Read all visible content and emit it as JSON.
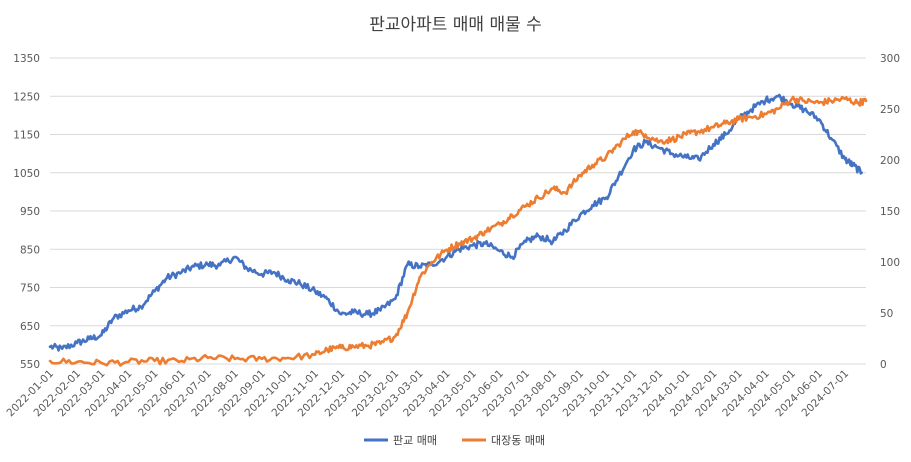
{
  "chart_data": {
    "type": "line",
    "title": "판교아파트 매매 매물 수",
    "xlabel": "",
    "ylabel": "",
    "y_left": {
      "min": 550,
      "max": 1350,
      "ticks": [
        "550",
        "650",
        "750",
        "850",
        "950",
        "1050",
        "1150",
        "1250",
        "1350"
      ]
    },
    "y_right": {
      "min": 0,
      "max": 300,
      "ticks": [
        "0",
        "50",
        "100",
        "150",
        "200",
        "250",
        "300"
      ]
    },
    "x_range": [
      "2022-01-01",
      "2024-07-25"
    ],
    "x_ticks": [
      "2022-01-01",
      "2022-02-01",
      "2022-03-01",
      "2022-04-01",
      "2022-05-01",
      "2022-06-01",
      "2022-07-01",
      "2022-08-01",
      "2022-09-01",
      "2022-10-01",
      "2022-11-01",
      "2022-12-01",
      "2023-01-01",
      "2023-02-01",
      "2023-03-01",
      "2023-04-01",
      "2023-05-01",
      "2023-06-01",
      "2023-07-01",
      "2023-08-01",
      "2023-09-01",
      "2023-10-01",
      "2023-11-01",
      "2023-12-01",
      "2024-01-01",
      "2024-02-01",
      "2024-03-01",
      "2024-04-01",
      "2024-05-01",
      "2024-06-01",
      "2024-07-01"
    ],
    "grid": true,
    "legend_position": "bottom",
    "series": [
      {
        "name": "판교 매매",
        "axis": "left",
        "color": "#4472C4",
        "points": [
          [
            "2022-01-01",
            595
          ],
          [
            "2022-01-15",
            590
          ],
          [
            "2022-02-01",
            605
          ],
          [
            "2022-02-15",
            615
          ],
          [
            "2022-03-01",
            625
          ],
          [
            "2022-03-15",
            670
          ],
          [
            "2022-04-01",
            690
          ],
          [
            "2022-04-15",
            700
          ],
          [
            "2022-05-01",
            740
          ],
          [
            "2022-05-15",
            775
          ],
          [
            "2022-06-01",
            790
          ],
          [
            "2022-06-15",
            805
          ],
          [
            "2022-07-01",
            810
          ],
          [
            "2022-07-15",
            808
          ],
          [
            "2022-08-01",
            830
          ],
          [
            "2022-08-15",
            800
          ],
          [
            "2022-09-01",
            785
          ],
          [
            "2022-09-15",
            790
          ],
          [
            "2022-10-01",
            770
          ],
          [
            "2022-10-15",
            760
          ],
          [
            "2022-11-01",
            740
          ],
          [
            "2022-11-15",
            720
          ],
          [
            "2022-12-01",
            680
          ],
          [
            "2022-12-15",
            685
          ],
          [
            "2023-01-01",
            680
          ],
          [
            "2023-01-15",
            690
          ],
          [
            "2023-02-01",
            720
          ],
          [
            "2023-02-15",
            810
          ],
          [
            "2023-03-01",
            805
          ],
          [
            "2023-03-15",
            810
          ],
          [
            "2023-04-01",
            830
          ],
          [
            "2023-04-15",
            850
          ],
          [
            "2023-05-01",
            860
          ],
          [
            "2023-05-15",
            865
          ],
          [
            "2023-06-01",
            845
          ],
          [
            "2023-06-15",
            830
          ],
          [
            "2023-07-01",
            870
          ],
          [
            "2023-07-15",
            885
          ],
          [
            "2023-08-01",
            870
          ],
          [
            "2023-08-15",
            900
          ],
          [
            "2023-09-01",
            940
          ],
          [
            "2023-09-15",
            965
          ],
          [
            "2023-10-01",
            985
          ],
          [
            "2023-10-15",
            1040
          ],
          [
            "2023-11-01",
            1110
          ],
          [
            "2023-11-15",
            1130
          ],
          [
            "2023-12-01",
            1115
          ],
          [
            "2023-12-15",
            1100
          ],
          [
            "2024-01-01",
            1090
          ],
          [
            "2024-01-15",
            1085
          ],
          [
            "2024-02-01",
            1125
          ],
          [
            "2024-02-15",
            1150
          ],
          [
            "2024-03-01",
            1190
          ],
          [
            "2024-03-15",
            1215
          ],
          [
            "2024-04-01",
            1240
          ],
          [
            "2024-04-15",
            1250
          ],
          [
            "2024-05-01",
            1230
          ],
          [
            "2024-05-15",
            1215
          ],
          [
            "2024-06-01",
            1190
          ],
          [
            "2024-06-15",
            1140
          ],
          [
            "2024-07-01",
            1085
          ],
          [
            "2024-07-10",
            1070
          ],
          [
            "2024-07-20",
            1050
          ]
        ]
      },
      {
        "name": "대장동 매매",
        "axis": "right",
        "color": "#ED7D31",
        "points": [
          [
            "2022-01-01",
            3
          ],
          [
            "2022-02-01",
            2
          ],
          [
            "2022-03-01",
            1
          ],
          [
            "2022-04-01",
            2
          ],
          [
            "2022-05-01",
            3
          ],
          [
            "2022-06-01",
            3
          ],
          [
            "2022-07-01",
            6
          ],
          [
            "2022-08-01",
            5
          ],
          [
            "2022-09-01",
            5
          ],
          [
            "2022-10-01",
            6
          ],
          [
            "2022-11-01",
            9
          ],
          [
            "2022-11-15",
            14
          ],
          [
            "2022-12-01",
            16
          ],
          [
            "2022-12-15",
            17
          ],
          [
            "2023-01-01",
            18
          ],
          [
            "2023-01-15",
            20
          ],
          [
            "2023-02-01",
            27
          ],
          [
            "2023-02-15",
            50
          ],
          [
            "2023-03-01",
            85
          ],
          [
            "2023-03-15",
            100
          ],
          [
            "2023-04-01",
            112
          ],
          [
            "2023-04-15",
            118
          ],
          [
            "2023-05-01",
            123
          ],
          [
            "2023-05-15",
            130
          ],
          [
            "2023-06-01",
            137
          ],
          [
            "2023-06-15",
            146
          ],
          [
            "2023-07-01",
            155
          ],
          [
            "2023-07-15",
            163
          ],
          [
            "2023-08-01",
            172
          ],
          [
            "2023-08-15",
            168
          ],
          [
            "2023-09-01",
            185
          ],
          [
            "2023-09-15",
            195
          ],
          [
            "2023-10-01",
            203
          ],
          [
            "2023-10-15",
            215
          ],
          [
            "2023-11-01",
            228
          ],
          [
            "2023-11-15",
            225
          ],
          [
            "2023-12-01",
            218
          ],
          [
            "2023-12-15",
            220
          ],
          [
            "2024-01-01",
            225
          ],
          [
            "2024-01-15",
            228
          ],
          [
            "2024-02-01",
            232
          ],
          [
            "2024-02-15",
            236
          ],
          [
            "2024-03-01",
            240
          ],
          [
            "2024-03-15",
            242
          ],
          [
            "2024-04-01",
            245
          ],
          [
            "2024-04-15",
            250
          ],
          [
            "2024-05-01",
            260
          ],
          [
            "2024-05-15",
            258
          ],
          [
            "2024-06-01",
            256
          ],
          [
            "2024-06-15",
            258
          ],
          [
            "2024-07-01",
            260
          ],
          [
            "2024-07-15",
            256
          ],
          [
            "2024-07-25",
            258
          ]
        ]
      }
    ]
  }
}
